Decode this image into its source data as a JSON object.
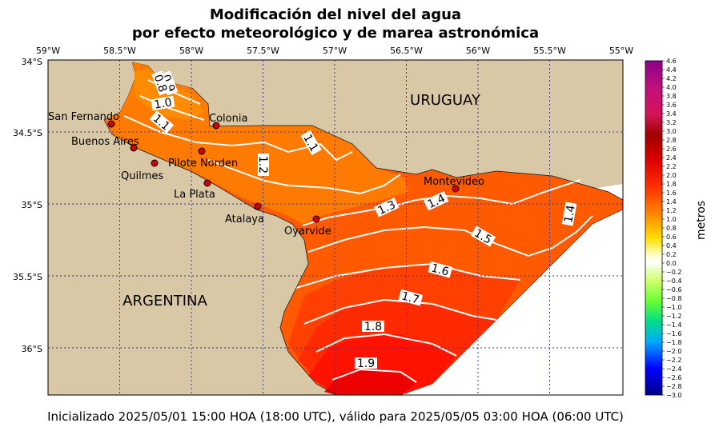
{
  "title": {
    "line1": "Modificación del nivel del agua",
    "line2": "por efecto meteorológico y de marea astronómica"
  },
  "footer": "Inicializado 2025/05/01 15:00 HOA (18:00 UTC), válido para 2025/05/05 03:00 HOA (06:00 UTC)",
  "axes": {
    "lon_ticks": [
      "59°W",
      "58.5°W",
      "58°W",
      "57.5°W",
      "57°W",
      "56.5°W",
      "56°W",
      "55.5°W",
      "55°W"
    ],
    "lat_ticks": [
      "34°S",
      "34.5°S",
      "35°S",
      "35.5°S",
      "36°S"
    ]
  },
  "regions": {
    "uruguay": "URUGUAY",
    "argentina": "ARGENTINA"
  },
  "stations": [
    {
      "name": "San Fernando"
    },
    {
      "name": "Buenos Aires"
    },
    {
      "name": "Colonia"
    },
    {
      "name": "Pilote Norden"
    },
    {
      "name": "Quilmes"
    },
    {
      "name": "La Plata"
    },
    {
      "name": "Atalaya"
    },
    {
      "name": "Oyarvide"
    },
    {
      "name": "Montevideo"
    }
  ],
  "contour_labels": [
    "0.9",
    "0.8",
    "1.0",
    "1.1",
    "1.1",
    "1.2",
    "1.3",
    "1.4",
    "1.4",
    "1.5",
    "1.6",
    "1.7",
    "1.8",
    "1.9"
  ],
  "colorbar": {
    "title": "metros",
    "ticks": [
      "4.6",
      "4.4",
      "4.2",
      "4.0",
      "3.8",
      "3.6",
      "3.4",
      "3.2",
      "3.0",
      "2.8",
      "2.6",
      "2.4",
      "2.2",
      "2.0",
      "1.8",
      "1.6",
      "1.4",
      "1.2",
      "1.0",
      "0.8",
      "0.6",
      "0.4",
      "0.2",
      "0.0",
      "−0.2",
      "−0.4",
      "−0.6",
      "−0.8",
      "−1.0",
      "−1.2",
      "−1.4",
      "−1.6",
      "−1.8",
      "−2.0",
      "−2.2",
      "−2.4",
      "−2.6",
      "−2.8",
      "−3.0"
    ]
  },
  "colors": {
    "land": "#d9c8a5",
    "sea_outside": "#ffffff",
    "level_0_9": "#ff8c00",
    "level_1_1": "#ff7a00",
    "level_1_3": "#ff5a00",
    "level_1_5": "#ff4a00",
    "level_1_7": "#ff2a00",
    "level_1_8": "#ff1200",
    "level_1_9": "#ee0000",
    "grid": "#3a3a8c"
  }
}
